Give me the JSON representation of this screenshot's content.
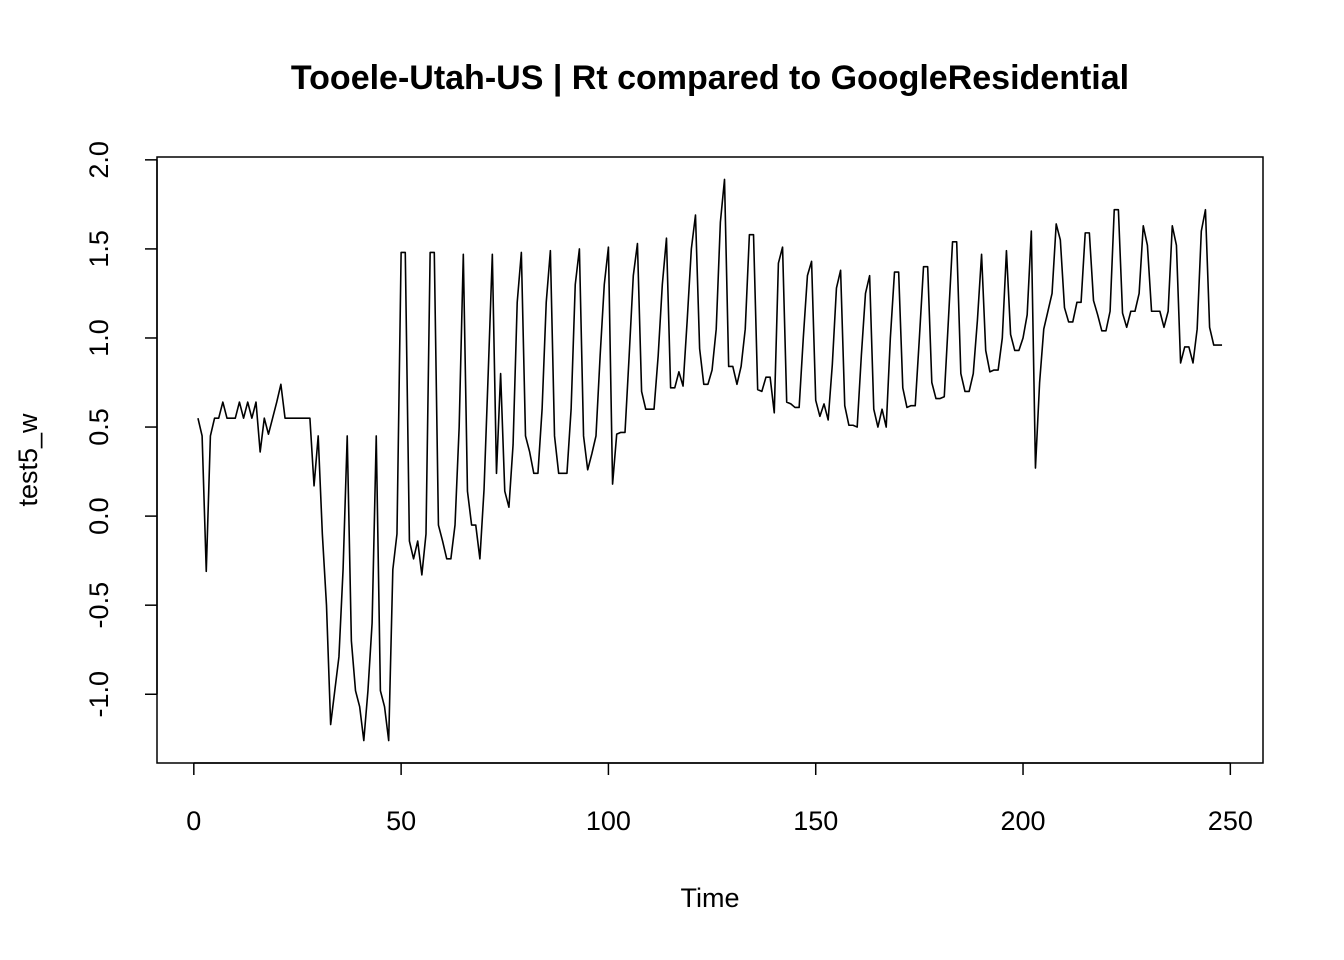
{
  "chart_data": {
    "type": "line",
    "title": "Tooele-Utah-US | Rt compared to GoogleResidential",
    "x_label": "Time",
    "y_label": "test5_w",
    "color": "#000000",
    "grid": false,
    "x": [
      1,
      2,
      3,
      4,
      5,
      6,
      7,
      8,
      9,
      10,
      11,
      12,
      13,
      14,
      15,
      16,
      17,
      18,
      19,
      20,
      21,
      22,
      23,
      24,
      25,
      26,
      27,
      28,
      29,
      30,
      31,
      32,
      33,
      34,
      35,
      36,
      37,
      38,
      39,
      40,
      41,
      42,
      43,
      44,
      45,
      46,
      47,
      48,
      49,
      50,
      51,
      52,
      53,
      54,
      55,
      56,
      57,
      58,
      59,
      60,
      61,
      62,
      63,
      64,
      65,
      66,
      67,
      68,
      69,
      70,
      71,
      72,
      73,
      74,
      75,
      76,
      77,
      78,
      79,
      80,
      81,
      82,
      83,
      84,
      85,
      86,
      87,
      88,
      89,
      90,
      91,
      92,
      93,
      94,
      95,
      96,
      97,
      98,
      99,
      100,
      101,
      102,
      103,
      104,
      105,
      106,
      107,
      108,
      109,
      110,
      111,
      112,
      113,
      114,
      115,
      116,
      117,
      118,
      119,
      120,
      121,
      122,
      123,
      124,
      125,
      126,
      127,
      128,
      129,
      130,
      131,
      132,
      133,
      134,
      135,
      136,
      137,
      138,
      139,
      140,
      141,
      142,
      143,
      144,
      145,
      146,
      147,
      148,
      149,
      150,
      151,
      152,
      153,
      154,
      155,
      156,
      157,
      158,
      159,
      160,
      161,
      162,
      163,
      164,
      165,
      166,
      167,
      168,
      169,
      170,
      171,
      172,
      173,
      174,
      175,
      176,
      177,
      178,
      179,
      180,
      181,
      182,
      183,
      184,
      185,
      186,
      187,
      188,
      189,
      190,
      191,
      192,
      193,
      194,
      195,
      196,
      197,
      198,
      199,
      200,
      201,
      202,
      203,
      204,
      205,
      206,
      207,
      208,
      209,
      210,
      211,
      212,
      213,
      214,
      215,
      216,
      217,
      218,
      219,
      220,
      221,
      222,
      223,
      224,
      225,
      226,
      227,
      228,
      229,
      230,
      231,
      232,
      233,
      234,
      235,
      236,
      237,
      238,
      239,
      240,
      241,
      242,
      243,
      244,
      245,
      246,
      247,
      248
    ],
    "values": [
      0.55,
      0.45,
      -0.31,
      0.45,
      0.55,
      0.55,
      0.64,
      0.55,
      0.55,
      0.55,
      0.64,
      0.55,
      0.64,
      0.55,
      0.64,
      0.36,
      0.55,
      0.46,
      0.55,
      0.64,
      0.74,
      0.55,
      0.55,
      0.55,
      0.55,
      0.55,
      0.55,
      0.55,
      0.17,
      0.45,
      -0.1,
      -0.5,
      -1.17,
      -0.98,
      -0.79,
      -0.3,
      0.45,
      -0.7,
      -0.98,
      -1.07,
      -1.26,
      -0.98,
      -0.6,
      0.45,
      -0.98,
      -1.07,
      -1.26,
      -0.3,
      -0.1,
      1.48,
      1.48,
      -0.14,
      -0.24,
      -0.14,
      -0.33,
      -0.1,
      1.48,
      1.48,
      -0.05,
      -0.14,
      -0.24,
      -0.24,
      -0.05,
      0.5,
      1.47,
      0.14,
      -0.05,
      -0.05,
      -0.24,
      0.15,
      0.8,
      1.47,
      0.24,
      0.8,
      0.14,
      0.05,
      0.4,
      1.2,
      1.48,
      0.45,
      0.36,
      0.24,
      0.24,
      0.6,
      1.2,
      1.49,
      0.45,
      0.24,
      0.24,
      0.24,
      0.6,
      1.3,
      1.5,
      0.45,
      0.26,
      0.35,
      0.45,
      0.9,
      1.3,
      1.51,
      0.18,
      0.46,
      0.47,
      0.47,
      0.9,
      1.35,
      1.53,
      0.7,
      0.6,
      0.6,
      0.6,
      0.9,
      1.3,
      1.56,
      0.72,
      0.72,
      0.81,
      0.73,
      1.1,
      1.5,
      1.69,
      0.94,
      0.74,
      0.74,
      0.82,
      1.05,
      1.65,
      1.89,
      0.84,
      0.84,
      0.74,
      0.84,
      1.05,
      1.58,
      1.58,
      0.71,
      0.7,
      0.78,
      0.78,
      0.58,
      1.42,
      1.51,
      0.64,
      0.63,
      0.61,
      0.61,
      1.0,
      1.35,
      1.43,
      0.65,
      0.56,
      0.63,
      0.54,
      0.85,
      1.28,
      1.38,
      0.62,
      0.51,
      0.51,
      0.5,
      0.9,
      1.25,
      1.35,
      0.6,
      0.5,
      0.6,
      0.5,
      1.0,
      1.37,
      1.37,
      0.72,
      0.61,
      0.62,
      0.62,
      1.0,
      1.4,
      1.4,
      0.75,
      0.66,
      0.66,
      0.67,
      1.1,
      1.54,
      1.54,
      0.8,
      0.7,
      0.7,
      0.8,
      1.1,
      1.47,
      0.93,
      0.81,
      0.82,
      0.82,
      1.0,
      1.49,
      1.02,
      0.93,
      0.93,
      1.0,
      1.13,
      1.6,
      0.27,
      0.75,
      1.05,
      1.15,
      1.25,
      1.64,
      1.55,
      1.17,
      1.09,
      1.09,
      1.2,
      1.2,
      1.59,
      1.59,
      1.21,
      1.13,
      1.04,
      1.04,
      1.15,
      1.72,
      1.72,
      1.14,
      1.06,
      1.15,
      1.15,
      1.25,
      1.63,
      1.52,
      1.15,
      1.15,
      1.15,
      1.06,
      1.15,
      1.63,
      1.52,
      0.86,
      0.95,
      0.95,
      0.86,
      1.05,
      1.6,
      1.72,
      1.06,
      0.96,
      0.96,
      0.96
    ],
    "xlim": [
      -8.88,
      257.88
    ],
    "ylim": [
      -1.386,
      2.016
    ],
    "xticks": [
      0,
      50,
      100,
      150,
      200,
      250
    ],
    "yticks": [
      {
        "value": -1,
        "label": "-1.0"
      },
      -0.5,
      {
        "value": 0,
        "label": "0.0"
      },
      0.5,
      {
        "value": 1,
        "label": "1.0"
      },
      1.5,
      {
        "value": 2,
        "label": "2.0"
      }
    ]
  }
}
